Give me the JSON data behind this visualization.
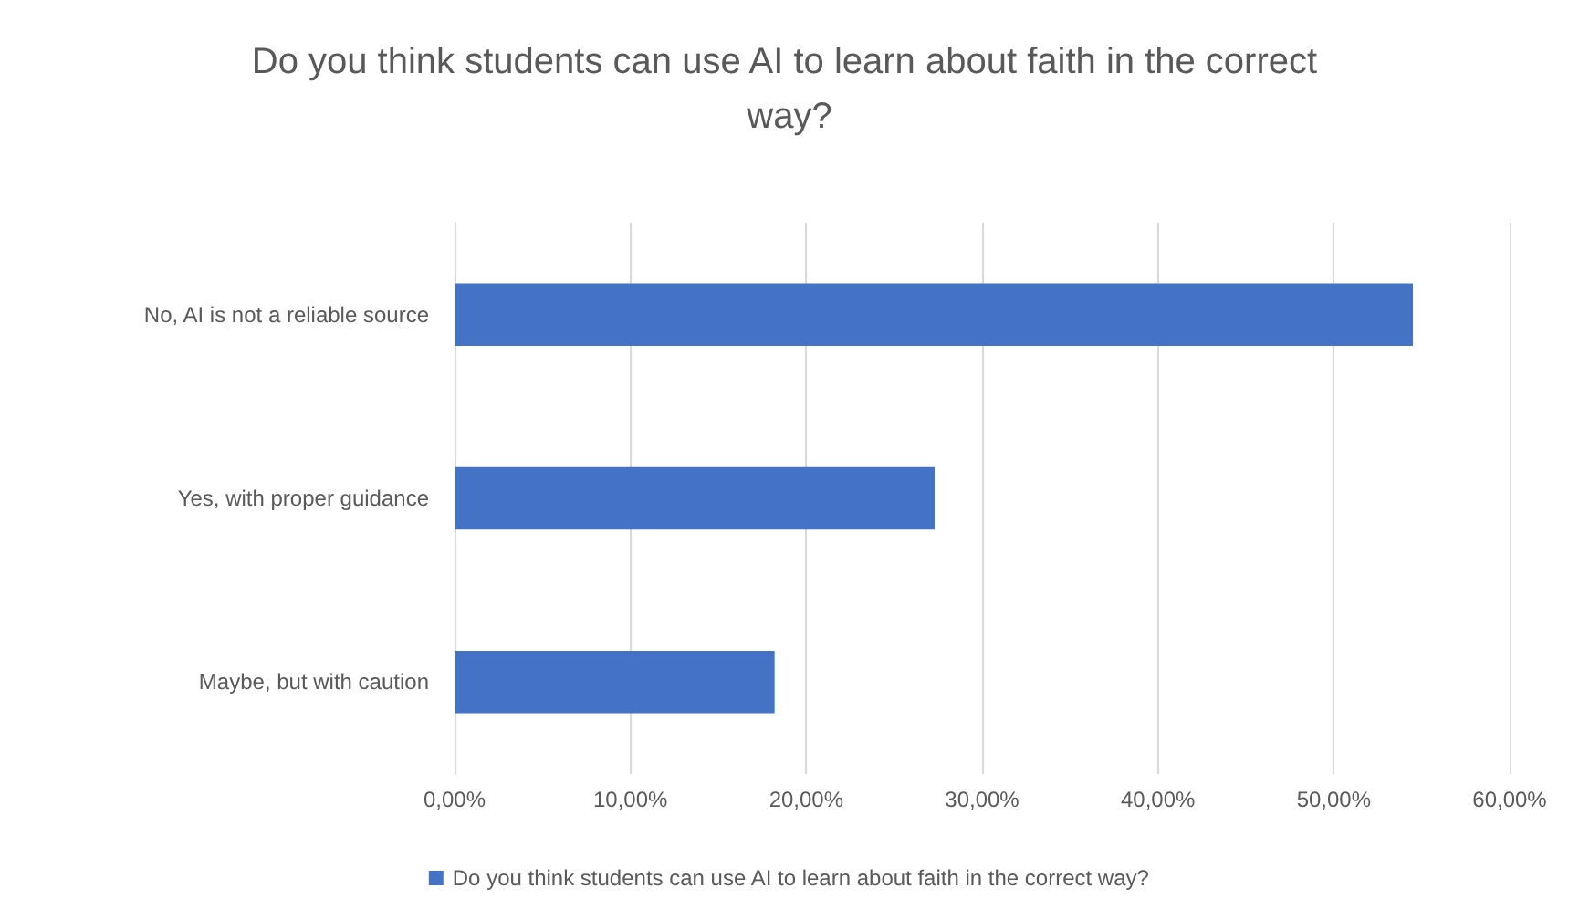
{
  "chart_data": {
    "type": "bar",
    "orientation": "horizontal",
    "title": "Do you think students can use AI to learn about faith in the correct way?",
    "categories": [
      "No, AI is not a reliable source",
      "Yes, with proper guidance",
      "Maybe, but with caution"
    ],
    "series": [
      {
        "name": "Do you think students can use AI to learn about faith in the correct way?",
        "color": "#4472c4",
        "values": [
          54.5,
          27.3,
          18.2
        ]
      }
    ],
    "xlim": [
      0,
      60
    ],
    "xticks": [
      {
        "value": 0,
        "label": "0,00%"
      },
      {
        "value": 10,
        "label": "10,00%"
      },
      {
        "value": 20,
        "label": "20,00%"
      },
      {
        "value": 30,
        "label": "30,00%"
      },
      {
        "value": 40,
        "label": "40,00%"
      },
      {
        "value": 50,
        "label": "50,00%"
      },
      {
        "value": 60,
        "label": "60,00%"
      }
    ],
    "grid": "x",
    "legend": "bottom"
  }
}
